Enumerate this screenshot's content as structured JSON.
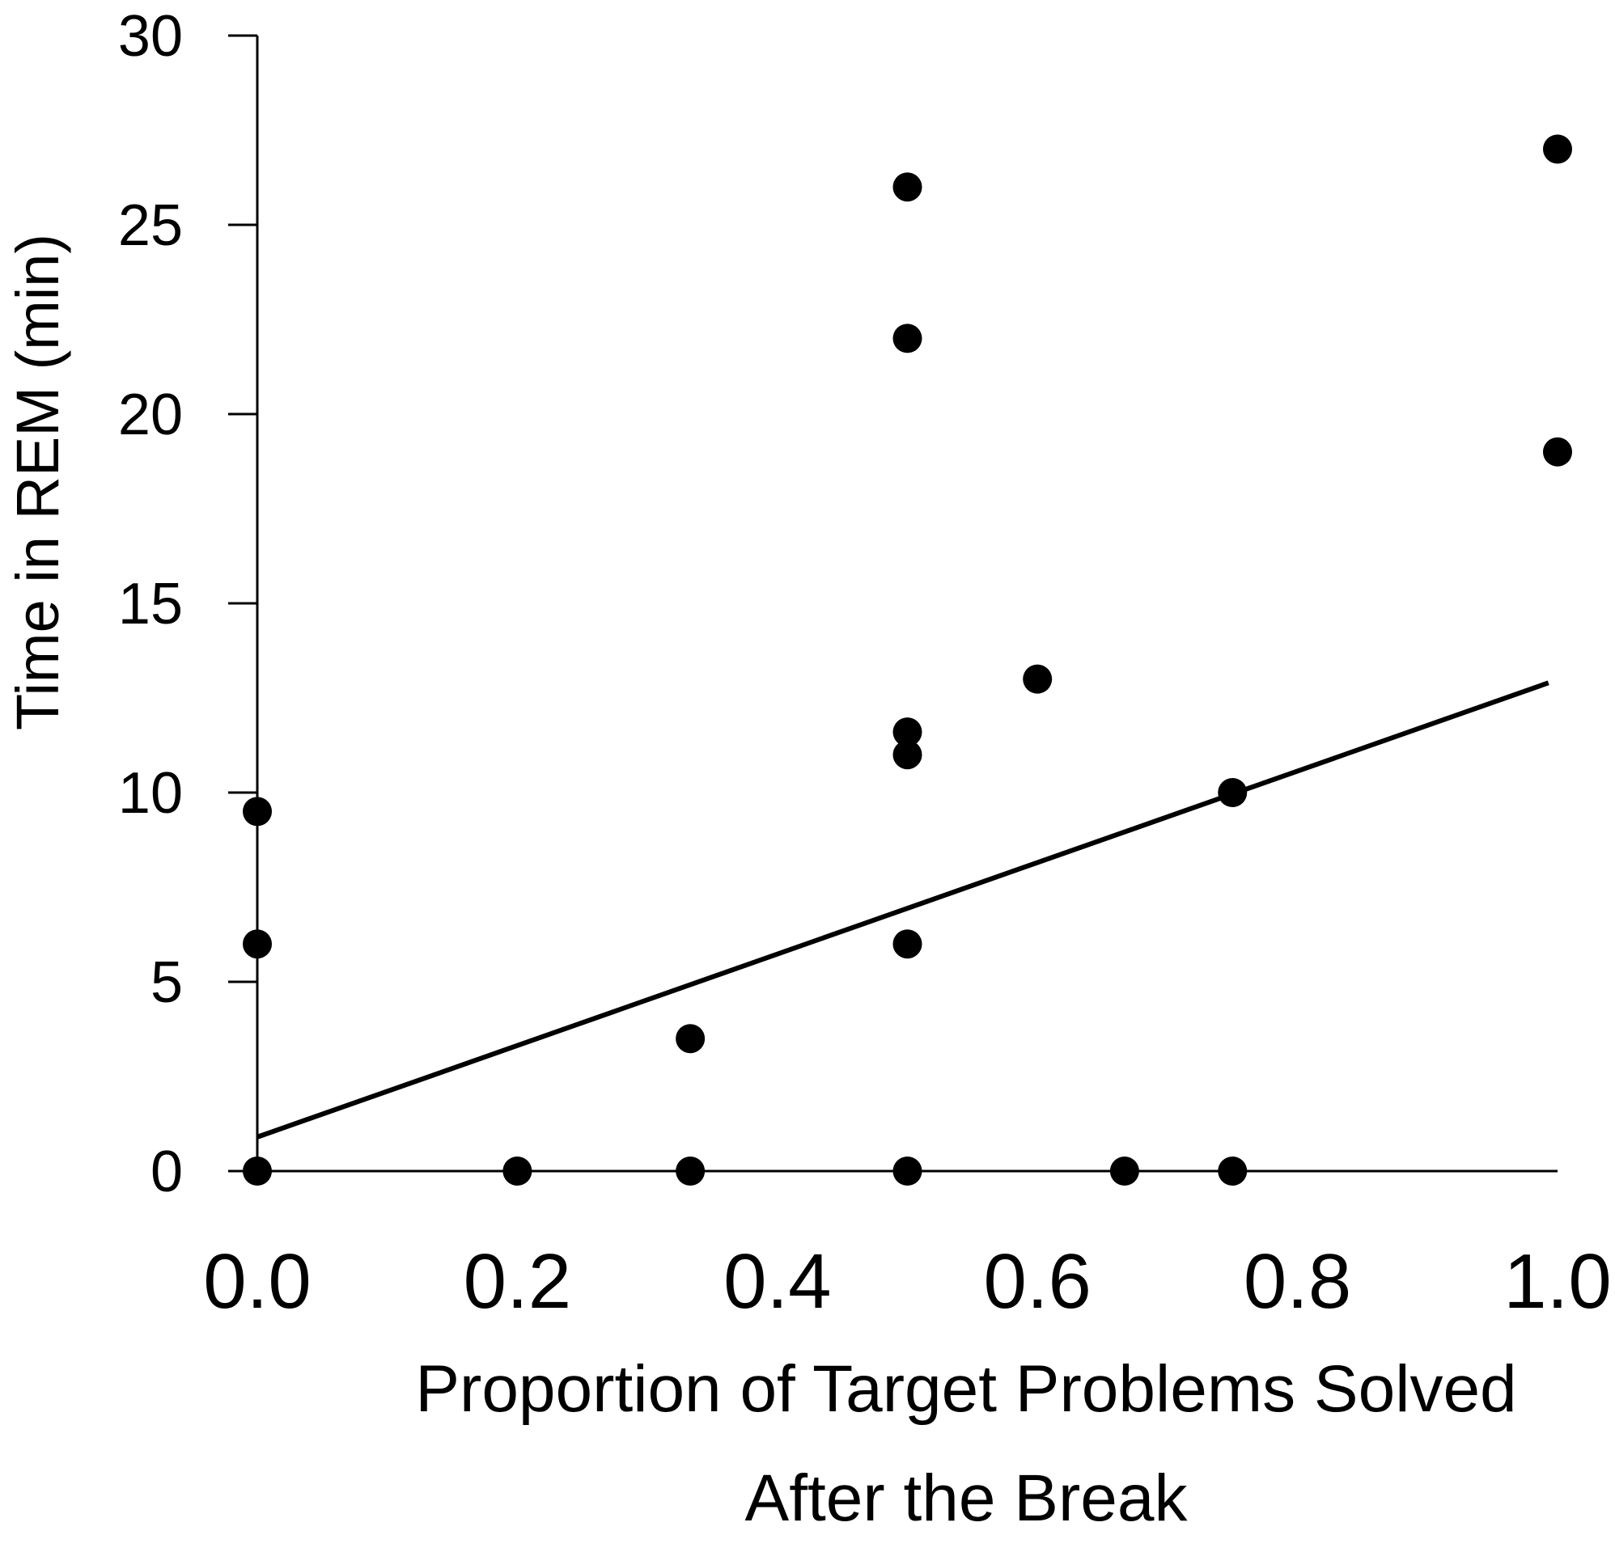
{
  "chart_data": {
    "type": "scatter",
    "title": "",
    "xlabel_lines": [
      "Proportion of Target Problems Solved",
      "After the Break"
    ],
    "ylabel": "Time in REM (min)",
    "xlim": [
      0,
      1
    ],
    "ylim": [
      0,
      30
    ],
    "x_ticks": [
      0,
      0.2,
      0.4,
      0.6,
      0.8,
      1.0
    ],
    "x_tick_labels": [
      "0.0",
      "0.2",
      "0.4",
      "0.6",
      "0.8",
      "1.0"
    ],
    "y_ticks": [
      0,
      5,
      10,
      15,
      20,
      25,
      30
    ],
    "y_tick_labels": [
      "0",
      "5",
      "10",
      "15",
      "20",
      "25",
      "30"
    ],
    "grid": false,
    "legend": "none",
    "points": [
      {
        "x": 0.0,
        "y": 9.5
      },
      {
        "x": 0.0,
        "y": 6.0
      },
      {
        "x": 0.0,
        "y": 0.0
      },
      {
        "x": 0.2,
        "y": 0.0
      },
      {
        "x": 0.333,
        "y": 3.5
      },
      {
        "x": 0.333,
        "y": 0.0
      },
      {
        "x": 0.5,
        "y": 26.0
      },
      {
        "x": 0.5,
        "y": 22.0
      },
      {
        "x": 0.5,
        "y": 11.6
      },
      {
        "x": 0.5,
        "y": 11.0
      },
      {
        "x": 0.5,
        "y": 6.0
      },
      {
        "x": 0.5,
        "y": 0.0
      },
      {
        "x": 0.6,
        "y": 13.0
      },
      {
        "x": 0.667,
        "y": 0.0
      },
      {
        "x": 0.75,
        "y": 10.0
      },
      {
        "x": 0.75,
        "y": 0.0
      },
      {
        "x": 1.0,
        "y": 27.0
      },
      {
        "x": 1.0,
        "y": 19.0
      }
    ],
    "trendline": {
      "x": [
        0.0,
        0.993
      ],
      "y": [
        0.9,
        12.9
      ]
    },
    "colors": {
      "marker": "#000000",
      "line": "#000000",
      "axis": "#000000"
    }
  }
}
